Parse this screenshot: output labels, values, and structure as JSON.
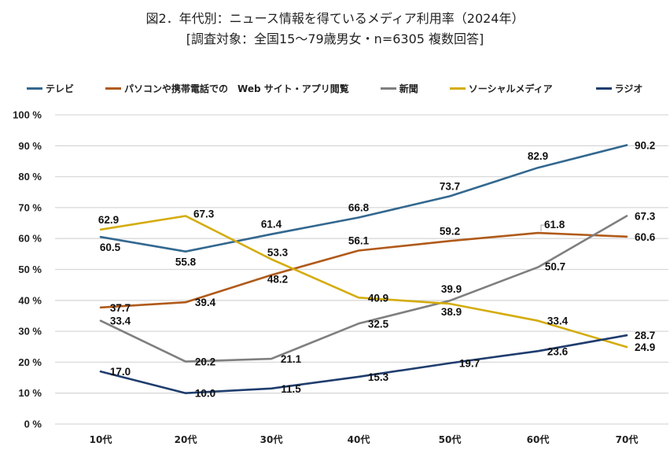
{
  "chart_data": {
    "type": "line",
    "title": "図2．年代別：ニュース情報を得ているメディア利用率（2024年）",
    "subtitle": "[調査対象：全国15～79歳男女・n=6305 複数回答]",
    "xlabel": "",
    "ylabel": "",
    "ylim": [
      0,
      100
    ],
    "y_ticks": [
      0,
      10,
      20,
      30,
      40,
      50,
      60,
      70,
      80,
      90,
      100
    ],
    "y_tick_labels": [
      "0 %",
      "10 %",
      "20 %",
      "30 %",
      "40 %",
      "50 %",
      "60 %",
      "70 %",
      "80 %",
      "90 %",
      "100 %"
    ],
    "grid": true,
    "legend_position": "top",
    "categories": [
      "10代",
      "20代",
      "30代",
      "40代",
      "50代",
      "60代",
      "70代"
    ],
    "series": [
      {
        "name": "テレビ",
        "color": "#33688f",
        "values": [
          60.5,
          55.8,
          61.4,
          66.8,
          73.7,
          82.9,
          90.2
        ],
        "label_pos": [
          "below",
          "below",
          "above",
          "above",
          "above",
          "above",
          "right"
        ]
      },
      {
        "name": "パソコンや携帯電話での　Web サイト・アプリ閲覧",
        "color": "#b05a1a",
        "values": [
          37.7,
          39.4,
          48.2,
          56.1,
          59.2,
          61.8,
          60.6
        ],
        "label_pos": [
          "on",
          "on",
          "below",
          "above",
          "above",
          "above-right",
          "right"
        ]
      },
      {
        "name": "新聞",
        "color": "#7f7f7f",
        "values": [
          33.4,
          20.2,
          21.1,
          32.5,
          39.9,
          50.7,
          67.3
        ],
        "label_pos": [
          "on",
          "on",
          "on",
          "on",
          "above",
          "below",
          "right"
        ]
      },
      {
        "name": "ソーシャルメディア",
        "color": "#d4ac0d",
        "values": [
          62.9,
          67.3,
          53.3,
          40.9,
          38.9,
          33.4,
          24.9
        ],
        "label_pos": [
          "above",
          "right",
          "above",
          "on",
          "below",
          "on",
          "right"
        ]
      },
      {
        "name": "ラジオ",
        "color": "#1f3d6e",
        "values": [
          17.0,
          10.0,
          11.5,
          15.3,
          19.7,
          23.6,
          28.7
        ],
        "label_pos": [
          "on",
          "on",
          "on",
          "on",
          "on",
          "on",
          "right"
        ]
      }
    ]
  }
}
